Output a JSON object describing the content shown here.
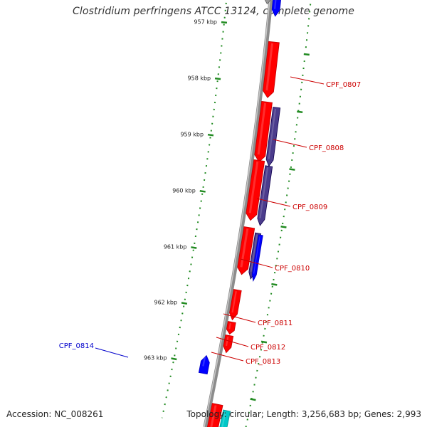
{
  "title": "Clostridium perfringens ATCC 13124, complete genome",
  "footer": {
    "accession": "Accession: NC_008261",
    "topology": "Topology: circular; Length: 3,256,683 bp; Genes: 2,993"
  },
  "colors": {
    "forward_gene": "#ff0000",
    "reverse_gene": "#0000ff",
    "reverse_gene_dark": "#4b3c8c",
    "cyan_gene": "#00c8c8",
    "backbone": "#8c8c8c",
    "tick": "#228b22",
    "forward_label": "#cc0000",
    "reverse_label": "#0000cc"
  },
  "ticks": [
    {
      "label": "957 kbp"
    },
    {
      "label": "958 kbp"
    },
    {
      "label": "959 kbp"
    },
    {
      "label": "960 kbp"
    },
    {
      "label": "961 kbp"
    },
    {
      "label": "962 kbp"
    },
    {
      "label": "963 kbp"
    }
  ],
  "gene_labels": [
    {
      "name": "CPF_0807",
      "strand": "forward"
    },
    {
      "name": "CPF_0808",
      "strand": "forward"
    },
    {
      "name": "CPF_0809",
      "strand": "forward"
    },
    {
      "name": "CPF_0810",
      "strand": "forward"
    },
    {
      "name": "CPF_0811",
      "strand": "forward"
    },
    {
      "name": "CPF_0812",
      "strand": "forward"
    },
    {
      "name": "CPF_0813",
      "strand": "forward"
    },
    {
      "name": "CPF_0814",
      "strand": "reverse"
    }
  ]
}
